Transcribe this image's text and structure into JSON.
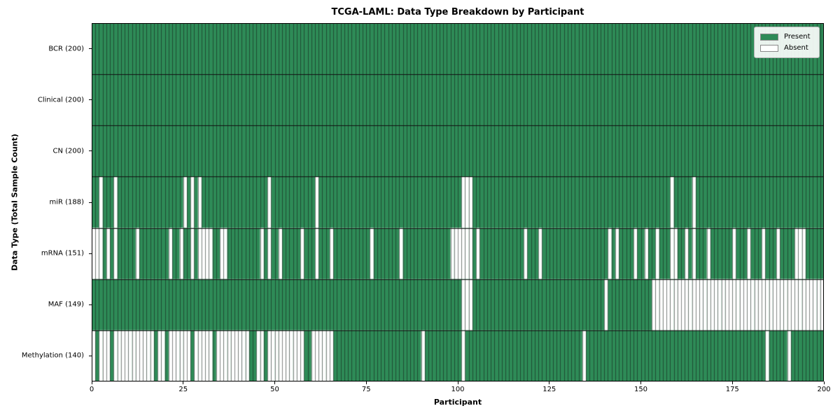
{
  "title": "TCGA-LAML: Data Type Breakdown by Participant",
  "chart_data": {
    "type": "heatmap",
    "title": "TCGA-LAML: Data Type Breakdown by Participant",
    "xlabel": "Participant",
    "ylabel": "Data Type (Total Sample Count)",
    "n_participants": 200,
    "x_ticks": [
      0,
      25,
      50,
      75,
      100,
      125,
      150,
      175,
      200
    ],
    "x_range": [
      0,
      200
    ],
    "grid": true,
    "legend": {
      "position": "upper right",
      "entries": [
        {
          "label": "Present",
          "color": "#2e8b57"
        },
        {
          "label": "Absent",
          "color": "#ffffff"
        }
      ]
    },
    "colors": {
      "present": "#2e8b57",
      "absent": "#ffffff",
      "cell_grid_line": "rgba(15,15,15,0.5)",
      "row_separator": "#111111"
    },
    "rows": [
      {
        "label": "BCR (200)",
        "name": "BCR",
        "present_count": 200,
        "absent_participants": []
      },
      {
        "label": "Clinical (200)",
        "name": "Clinical",
        "present_count": 200,
        "absent_participants": []
      },
      {
        "label": "CN (200)",
        "name": "CN",
        "present_count": 200,
        "absent_participants": []
      },
      {
        "label": "miR (188)",
        "name": "miR",
        "present_count": 188,
        "absent_participants": [
          2,
          6,
          25,
          27,
          29,
          48,
          61,
          101,
          102,
          103,
          158,
          164
        ]
      },
      {
        "label": "mRNA (151)",
        "name": "mRNA",
        "present_count": 151,
        "absent_participants": [
          0,
          1,
          2,
          4,
          6,
          12,
          21,
          24,
          27,
          29,
          30,
          31,
          32,
          35,
          36,
          46,
          48,
          51,
          57,
          61,
          65,
          76,
          84,
          98,
          99,
          100,
          101,
          102,
          103,
          105,
          118,
          122,
          141,
          143,
          148,
          151,
          154,
          158,
          159,
          162,
          164,
          168,
          175,
          179,
          183,
          187,
          192,
          193,
          194
        ]
      },
      {
        "label": "MAF (149)",
        "name": "MAF",
        "present_count": 149,
        "absent_participants": [
          101,
          102,
          103,
          140,
          153,
          154,
          155,
          156,
          157,
          158,
          159,
          160,
          161,
          162,
          163,
          164,
          165,
          166,
          167,
          168,
          169,
          170,
          171,
          172,
          173,
          174,
          175,
          176,
          177,
          178,
          179,
          180,
          181,
          182,
          183,
          184,
          185,
          186,
          187,
          188,
          189,
          190,
          191,
          192,
          193,
          194,
          195,
          196,
          197,
          198,
          199
        ]
      },
      {
        "label": "Methylation (140)",
        "name": "Methylation",
        "present_count": 140,
        "absent_participants": [
          0,
          2,
          3,
          4,
          6,
          7,
          8,
          9,
          10,
          11,
          12,
          13,
          14,
          15,
          16,
          18,
          19,
          21,
          22,
          23,
          24,
          25,
          26,
          28,
          29,
          30,
          31,
          32,
          34,
          35,
          36,
          37,
          38,
          39,
          40,
          41,
          42,
          45,
          46,
          48,
          49,
          50,
          51,
          52,
          53,
          54,
          55,
          56,
          57,
          60,
          61,
          62,
          63,
          64,
          65,
          90,
          101,
          134,
          184,
          190
        ]
      }
    ]
  }
}
